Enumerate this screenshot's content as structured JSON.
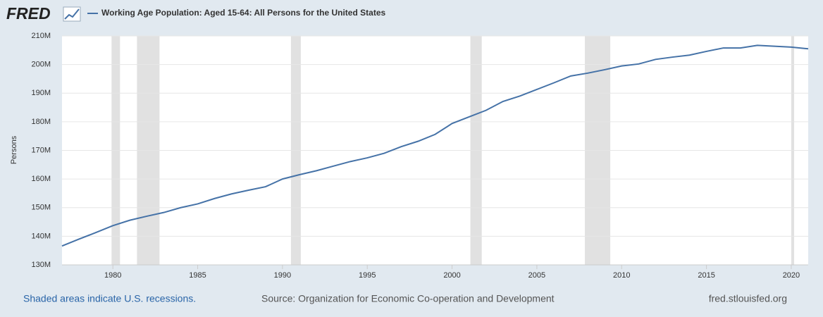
{
  "logo": "FRED",
  "footer": {
    "note": "Shaded areas indicate U.S. recessions.",
    "source": "Source: Organization for Economic Co-operation and Development",
    "link": "fred.stlouisfed.org"
  },
  "chart_data": {
    "type": "line",
    "y_label": "Persons",
    "x": [
      1977,
      1978,
      1979,
      1980,
      1981,
      1982,
      1983,
      1984,
      1985,
      1986,
      1987,
      1988,
      1989,
      1990,
      1991,
      1992,
      1993,
      1994,
      1995,
      1996,
      1997,
      1998,
      1999,
      2000,
      2001,
      2002,
      2003,
      2004,
      2005,
      2006,
      2007,
      2008,
      2009,
      2010,
      2011,
      2012,
      2013,
      2014,
      2015,
      2016,
      2017,
      2018,
      2019,
      2020,
      2021
    ],
    "series": [
      {
        "name": "Working Age Population: Aged 15-64: All Persons for the United States",
        "color": "#4572a7",
        "values": [
          136600000,
          139000000,
          141300000,
          143700000,
          145600000,
          147000000,
          148300000,
          150000000,
          151300000,
          153200000,
          154800000,
          156100000,
          157300000,
          160000000,
          161500000,
          162900000,
          164500000,
          166100000,
          167400000,
          169000000,
          171300000,
          173200000,
          175600000,
          179400000,
          181700000,
          184000000,
          187100000,
          189000000,
          191300000,
          193600000,
          196000000,
          197000000,
          198200000,
          199500000,
          200200000,
          201800000,
          202600000,
          203300000,
          204600000,
          205800000,
          205800000,
          206700000,
          206400000,
          206100000,
          205500000
        ]
      }
    ],
    "recessions": [
      [
        1979.92,
        1980.42
      ],
      [
        1981.42,
        1982.75
      ],
      [
        1990.5,
        1991.08
      ],
      [
        2001.08,
        2001.75
      ],
      [
        2007.83,
        2009.33
      ],
      [
        2020.0,
        2020.17
      ]
    ],
    "recession_color": "#e1e1e1",
    "xlim": [
      1977,
      2021
    ],
    "xticks": [
      1980,
      1985,
      1990,
      1995,
      2000,
      2005,
      2010,
      2015,
      2020
    ],
    "ylim": [
      130000000,
      210000000
    ],
    "yticks": [
      {
        "value": 130000000,
        "label": "130M"
      },
      {
        "value": 140000000,
        "label": "140M"
      },
      {
        "value": 150000000,
        "label": "150M"
      },
      {
        "value": 160000000,
        "label": "160M"
      },
      {
        "value": 170000000,
        "label": "170M"
      },
      {
        "value": 180000000,
        "label": "180M"
      },
      {
        "value": 190000000,
        "label": "190M"
      },
      {
        "value": 200000000,
        "label": "200M"
      },
      {
        "value": 210000000,
        "label": "210M"
      }
    ],
    "grid": true
  }
}
